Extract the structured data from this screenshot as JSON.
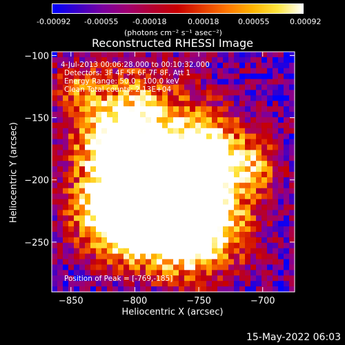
{
  "colorbar": {
    "ticks": [
      "-0.00092",
      "-0.00055",
      "-0.00018",
      "0.00018",
      "0.00055",
      "0.00092"
    ],
    "units": "(photons cm⁻² s⁻¹ asec⁻²)"
  },
  "chart_data": {
    "type": "heatmap",
    "title": "Reconstructed RHESSI Image",
    "xlabel": "Heliocentric X (arcsec)",
    "ylabel": "Heliocentric Y (arcsec)",
    "xlim": [
      -865,
      -675
    ],
    "ylim": [
      -290,
      -97
    ],
    "xticks": [
      -850,
      -800,
      -750,
      -700
    ],
    "yticks": [
      -100,
      -150,
      -200,
      -250
    ],
    "annotations": [
      "4-Jul-2013 00:06:28.000 to 00:10:32.000",
      "Detectors: 3F 4F 5F 6F 7F 8F, Att 1",
      "Energy Range: 50.0 - 100.0 keV",
      "Clean    Total counts: 2.13E+04"
    ],
    "peak_label": "Position of Peak = [-769,-185]",
    "peak": [
      -769,
      -185
    ],
    "colormap": "blue-purple-red-orange-yellow-white"
  },
  "footer_date": "15-May-2022 06:03"
}
